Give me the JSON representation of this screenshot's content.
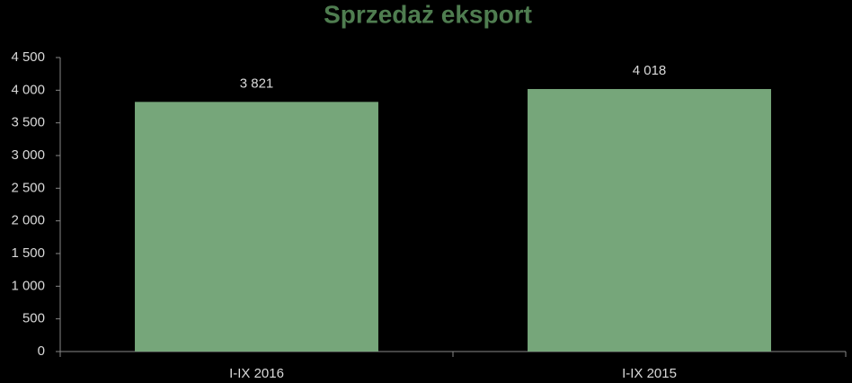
{
  "chart_data": {
    "type": "bar",
    "title": "Sprzedaż eksport",
    "categories": [
      "I-IX 2016",
      "I-IX 2015"
    ],
    "values": [
      3821,
      4018
    ],
    "value_labels": [
      "3 821",
      "4 018"
    ],
    "color": "#76a67a",
    "ylim": [
      0,
      4500
    ],
    "yticks": [
      0,
      500,
      {
        "value": 1000,
        "label": "1 000"
      },
      {
        "value": 1500,
        "label": "1 500"
      },
      {
        "value": 2000,
        "label": "2 000"
      },
      {
        "value": 2500,
        "label": "2 500"
      },
      {
        "value": 3000,
        "label": "3 000"
      },
      {
        "value": 3500,
        "label": "3 500"
      },
      {
        "value": 4000,
        "label": "4 000"
      },
      {
        "value": 4500,
        "label": "4 500"
      }
    ]
  }
}
